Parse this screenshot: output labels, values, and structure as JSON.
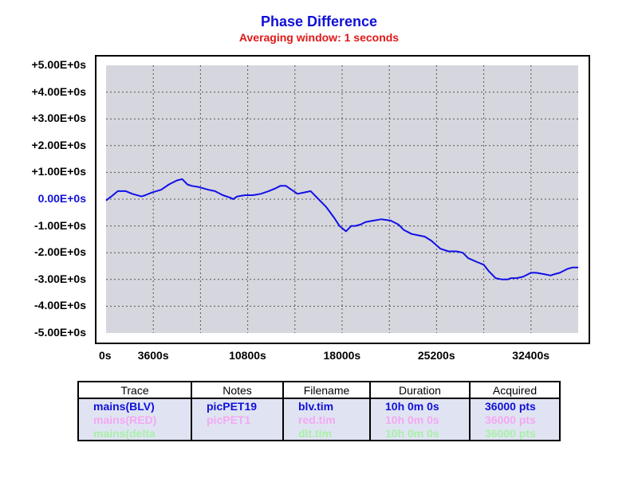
{
  "chart_data": {
    "type": "line",
    "title": "Phase Difference",
    "subtitle": "Averaging window: 1 seconds",
    "xlim": [
      0,
      36000
    ],
    "ylim": [
      -5,
      5
    ],
    "y_unit_note": "values in seconds (E+0s)",
    "x_ticks": [
      "0s",
      "3600s",
      "10800s",
      "18000s",
      "25200s",
      "32400s"
    ],
    "x_tick_values": [
      0,
      3600,
      10800,
      18000,
      25200,
      32400
    ],
    "y_ticks": [
      "+5.00E+0s",
      "+4.00E+0s",
      "+3.00E+0s",
      "+2.00E+0s",
      "+1.00E+0s",
      "0.00E+0s",
      "-1.00E+0s",
      "-2.00E+0s",
      "-3.00E+0s",
      "-4.00E+0s",
      "-5.00E+0s"
    ],
    "y_tick_values": [
      5,
      4,
      3,
      2,
      1,
      0,
      -1,
      -2,
      -3,
      -4,
      -5
    ],
    "grid": true,
    "series": [
      {
        "name": "mains(BLV)",
        "color": "#1010e8",
        "x": [
          0,
          400,
          900,
          1500,
          2000,
          2700,
          3000,
          3500,
          4200,
          4800,
          5400,
          5800,
          6200,
          6500,
          7100,
          7800,
          8300,
          8900,
          9500,
          9700,
          10000,
          10600,
          11200,
          11800,
          12400,
          12900,
          13300,
          13700,
          14000,
          14600,
          15100,
          15600,
          16200,
          16800,
          17400,
          17800,
          18300,
          18700,
          19000,
          19400,
          19800,
          20400,
          21000,
          21700,
          22300,
          22700,
          23300,
          23800,
          24300,
          24800,
          25500,
          26100,
          26700,
          27200,
          27600,
          28300,
          28800,
          29200,
          29700,
          30200,
          30600,
          30900,
          31300,
          31800,
          32400,
          32800,
          33400,
          33900,
          34200,
          34600,
          35200,
          35600,
          36000
        ],
        "y": [
          -0.05,
          0.1,
          0.3,
          0.3,
          0.2,
          0.1,
          0.15,
          0.25,
          0.35,
          0.55,
          0.7,
          0.75,
          0.55,
          0.5,
          0.45,
          0.35,
          0.3,
          0.15,
          0.05,
          0.0,
          0.1,
          0.15,
          0.15,
          0.2,
          0.3,
          0.4,
          0.5,
          0.5,
          0.4,
          0.2,
          0.25,
          0.3,
          0.0,
          -0.3,
          -0.7,
          -1.0,
          -1.2,
          -1.0,
          -1.0,
          -0.95,
          -0.85,
          -0.8,
          -0.75,
          -0.8,
          -0.95,
          -1.15,
          -1.3,
          -1.35,
          -1.4,
          -1.55,
          -1.85,
          -1.95,
          -1.95,
          -2.0,
          -2.2,
          -2.35,
          -2.45,
          -2.7,
          -2.95,
          -3.0,
          -3.0,
          -2.95,
          -2.95,
          -2.9,
          -2.75,
          -2.75,
          -2.8,
          -2.85,
          -2.8,
          -2.75,
          -2.6,
          -2.55,
          -2.55
        ]
      }
    ]
  },
  "legend_table": {
    "headers": [
      "Trace",
      "Notes",
      "Filename",
      "Duration",
      "Acquired"
    ],
    "rows": [
      {
        "cells": [
          "mains(BLV)",
          "picPET19",
          "blv.tim",
          "10h 0m 0s",
          "36000 pts"
        ],
        "color": "#1010d8"
      },
      {
        "cells": [
          "mains(RED)",
          "picPET1",
          "red.tim",
          "10h 0m 0s",
          "36000 pts"
        ],
        "color": "#f4a8f4"
      },
      {
        "cells": [
          "mains(delta",
          "",
          "dlt.tim",
          "10h 0m 0s",
          "36000 pts"
        ],
        "color": "#a8f0a8"
      }
    ]
  }
}
